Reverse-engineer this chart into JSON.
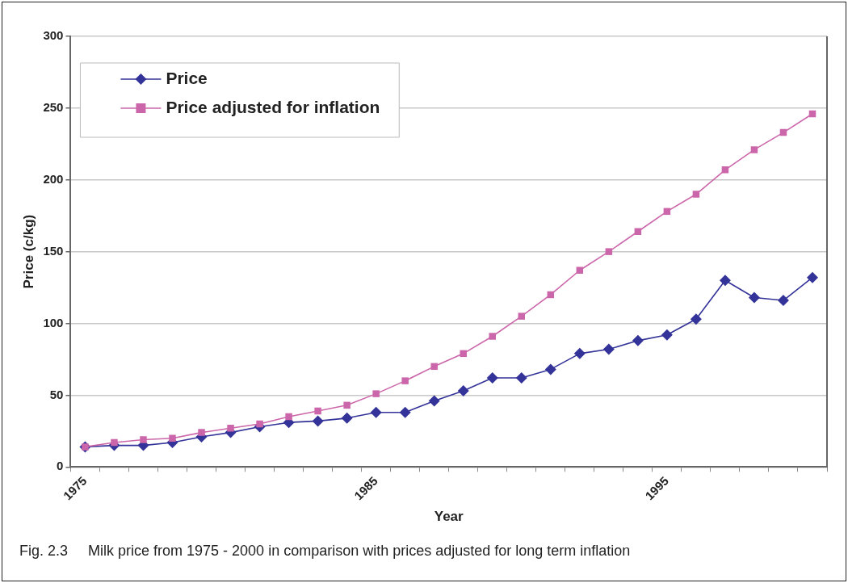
{
  "chart_data": {
    "type": "line",
    "xlabel": "Year",
    "ylabel": "Price (c/kg)",
    "categories": [
      "1975",
      null,
      null,
      null,
      null,
      null,
      null,
      null,
      null,
      null,
      "1985",
      null,
      null,
      null,
      null,
      null,
      null,
      null,
      null,
      null,
      "1995",
      null,
      null,
      null,
      null,
      null
    ],
    "series": [
      {
        "name": "Price",
        "color": "#333399",
        "marker": "diamond",
        "values": [
          14,
          15,
          15,
          17,
          21,
          24,
          28,
          31,
          32,
          34,
          38,
          38,
          46,
          53,
          62,
          62,
          68,
          79,
          82,
          88,
          92,
          103,
          130,
          118,
          116,
          132
        ]
      },
      {
        "name": "Price adjusted for inflation",
        "color": "#cc66aa",
        "marker": "square",
        "values": [
          14,
          17,
          19,
          20,
          24,
          27,
          30,
          35,
          39,
          43,
          51,
          60,
          70,
          79,
          91,
          105,
          120,
          137,
          150,
          164,
          178,
          190,
          207,
          221,
          233,
          246
        ]
      }
    ],
    "ylim": [
      0,
      300
    ],
    "yticks": [
      0,
      50,
      100,
      150,
      200,
      250,
      300
    ],
    "grid": "y",
    "legend": "top left",
    "annotations": [
      "Fig. 2.3     Milk price from 1975 - 2000 in comparison with prices adjusted for long term inflation"
    ]
  }
}
